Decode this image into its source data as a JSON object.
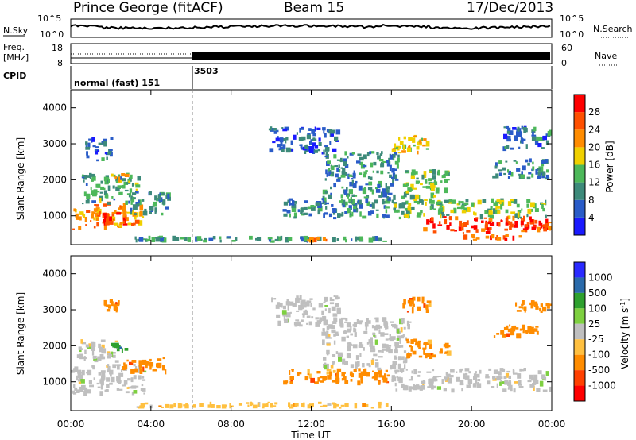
{
  "header": {
    "station": "Prince George (fitACF)",
    "beam": "Beam 15",
    "date": "17/Dec/2013"
  },
  "noise_panel": {
    "left_label": "N.Sky",
    "right_label": "N.Search",
    "ticks": [
      "10^5",
      "10^0"
    ]
  },
  "freq_panel": {
    "left_label_1": "Freq.",
    "left_label_2": "[MHz]",
    "left_ticks": [
      "18",
      "8"
    ],
    "right_label": "Nave",
    "right_ticks": [
      "60",
      "0"
    ]
  },
  "cpid_panel": {
    "label": "CPID",
    "segment_1": "normal (fast) 151",
    "segment_2": "3503"
  },
  "colors": {
    "power_scale": [
      "#1a1aff",
      "#2a5cc8",
      "#3d8a7a",
      "#4db85a",
      "#f0d000",
      "#ff8c00",
      "#ff5000",
      "#ff0000"
    ],
    "velocity_scale": [
      "#2a2aff",
      "#2a6aaa",
      "#2ea02e",
      "#7ed040",
      "#bfbfbf",
      "#ffc040",
      "#ff8c00",
      "#ff4000",
      "#ff0000"
    ]
  },
  "chart_data": [
    {
      "type": "heatmap",
      "title": "Power",
      "xlabel": "Time UT",
      "ylabel": "Slant Range [km]",
      "x_ticks": [
        "00:00",
        "04:00",
        "08:00",
        "12:00",
        "16:00",
        "20:00",
        "00:00"
      ],
      "y_ticks": [
        "1000",
        "2000",
        "3000",
        "4000"
      ],
      "ylim": [
        200,
        4500
      ],
      "colorbar_label": "Power [dB]",
      "colorbar_ticks": [
        "4",
        "8",
        "12",
        "16",
        "20",
        "24",
        "28"
      ],
      "colorbar_range": [
        0,
        32
      ],
      "regions": [
        {
          "t0": 0.0,
          "t1": 3.7,
          "r0": 600,
          "r1": 1400,
          "value": 22
        },
        {
          "t0": 1.3,
          "t1": 2.9,
          "r0": 700,
          "r1": 1100,
          "value": 28
        },
        {
          "t0": 0.5,
          "t1": 3.5,
          "r0": 1300,
          "r1": 2200,
          "value": 12
        },
        {
          "t0": 0.7,
          "t1": 2.2,
          "r0": 2500,
          "r1": 3200,
          "value": 8
        },
        {
          "t0": 2.0,
          "t1": 3.0,
          "r0": 1900,
          "r1": 2200,
          "value": 20
        },
        {
          "t0": 2.8,
          "t1": 5.0,
          "r0": 1000,
          "r1": 1700,
          "value": 10
        },
        {
          "t0": 3.0,
          "t1": 16.0,
          "r0": 250,
          "r1": 450,
          "value": 10
        },
        {
          "t0": 11.6,
          "t1": 12.8,
          "r0": 250,
          "r1": 420,
          "value": 26
        },
        {
          "t0": 9.8,
          "t1": 13.5,
          "r0": 2700,
          "r1": 3500,
          "value": 6
        },
        {
          "t0": 10.5,
          "t1": 16.0,
          "r0": 900,
          "r1": 1500,
          "value": 10
        },
        {
          "t0": 12.5,
          "t1": 16.5,
          "r0": 1300,
          "r1": 2800,
          "value": 10
        },
        {
          "t0": 16.0,
          "t1": 24.0,
          "r0": 900,
          "r1": 1500,
          "value": 14
        },
        {
          "t0": 17.5,
          "t1": 24.0,
          "r0": 500,
          "r1": 1000,
          "value": 28
        },
        {
          "t0": 19.5,
          "t1": 22.5,
          "r0": 300,
          "r1": 500,
          "value": 26
        },
        {
          "t0": 16.5,
          "t1": 19.0,
          "r0": 1300,
          "r1": 2300,
          "value": 14
        },
        {
          "t0": 16.0,
          "t1": 18.0,
          "r0": 2700,
          "r1": 3300,
          "value": 18
        },
        {
          "t0": 21.0,
          "t1": 24.0,
          "r0": 2000,
          "r1": 2600,
          "value": 10
        },
        {
          "t0": 21.5,
          "t1": 24.0,
          "r0": 2800,
          "r1": 3500,
          "value": 8
        }
      ]
    },
    {
      "type": "heatmap",
      "title": "Velocity",
      "xlabel": "Time UT",
      "ylabel": "Slant Range [km]",
      "x_ticks": [
        "00:00",
        "04:00",
        "08:00",
        "12:00",
        "16:00",
        "20:00",
        "00:00"
      ],
      "y_ticks": [
        "1000",
        "2000",
        "3000",
        "4000"
      ],
      "ylim": [
        200,
        4500
      ],
      "colorbar_label": "Velocity [m s^-1]",
      "colorbar_ticks": [
        "1000",
        "500",
        "100",
        "25",
        "-25",
        "-100",
        "-500",
        "-1000"
      ],
      "regions": [
        {
          "t0": 0.0,
          "t1": 3.8,
          "r0": 600,
          "r1": 1500,
          "value": 0
        },
        {
          "t0": 0.3,
          "t1": 2.5,
          "r0": 1500,
          "r1": 2200,
          "value": 0
        },
        {
          "t0": 2.5,
          "t1": 4.8,
          "r0": 1200,
          "r1": 1700,
          "value": -300
        },
        {
          "t0": 2.0,
          "t1": 3.0,
          "r0": 1800,
          "r1": 2100,
          "value": 200
        },
        {
          "t0": 1.5,
          "t1": 2.5,
          "r0": 2900,
          "r1": 3400,
          "value": -200
        },
        {
          "t0": 3.0,
          "t1": 16.0,
          "r0": 250,
          "r1": 450,
          "value": -100
        },
        {
          "t0": 10.0,
          "t1": 13.5,
          "r0": 2500,
          "r1": 3400,
          "value": 0
        },
        {
          "t0": 10.5,
          "t1": 16.0,
          "r0": 900,
          "r1": 1400,
          "value": -150
        },
        {
          "t0": 12.5,
          "t1": 17.0,
          "r0": 1300,
          "r1": 2800,
          "value": 0
        },
        {
          "t0": 16.0,
          "t1": 24.0,
          "r0": 700,
          "r1": 1400,
          "value": 0
        },
        {
          "t0": 16.5,
          "t1": 19.0,
          "r0": 1600,
          "r1": 2200,
          "value": -200
        },
        {
          "t0": 16.5,
          "t1": 18.0,
          "r0": 2900,
          "r1": 3400,
          "value": -300
        },
        {
          "t0": 21.0,
          "t1": 23.5,
          "r0": 2200,
          "r1": 2600,
          "value": -300
        },
        {
          "t0": 22.0,
          "t1": 24.0,
          "r0": 2900,
          "r1": 3300,
          "value": -200
        }
      ]
    }
  ]
}
